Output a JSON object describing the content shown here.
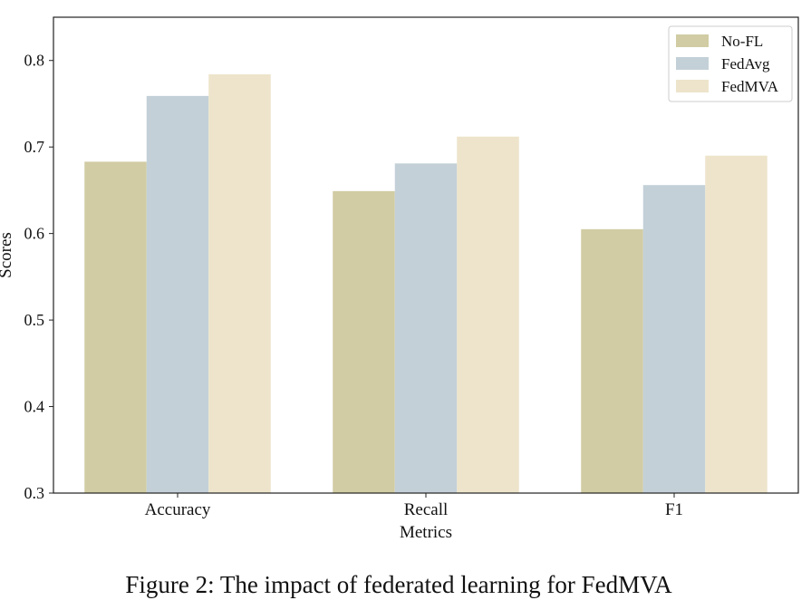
{
  "chart_data": {
    "type": "bar",
    "title": "",
    "xlabel": "Metrics",
    "ylabel": "Scores",
    "categories": [
      "Accuracy",
      "Recall",
      "F1"
    ],
    "series": [
      {
        "name": "No-FL",
        "values": [
          0.683,
          0.649,
          0.605
        ],
        "color": "#d1cca3"
      },
      {
        "name": "FedAvg",
        "values": [
          0.759,
          0.681,
          0.656
        ],
        "color": "#c3d0d8"
      },
      {
        "name": "FedMVA",
        "values": [
          0.784,
          0.712,
          0.69
        ],
        "color": "#ede4cb"
      }
    ],
    "ylim": [
      0.3,
      0.85
    ],
    "yticks": [
      "0.3",
      "0.4",
      "0.5",
      "0.6",
      "0.7",
      "0.8"
    ],
    "grid": false,
    "legend_position": "top-right"
  },
  "caption": "Figure 2: The impact of federated learning for FedMVA"
}
